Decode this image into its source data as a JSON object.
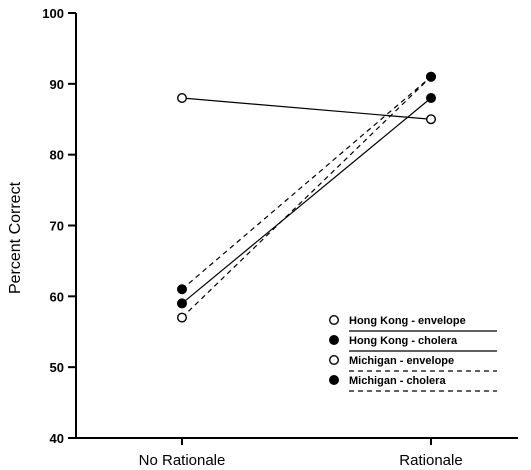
{
  "chart_data": {
    "type": "line",
    "ylabel": "Percent Correct",
    "xlabel": "",
    "categories": [
      "No Rationale",
      "Rationale"
    ],
    "ylim": [
      40,
      100
    ],
    "yticks": [
      40,
      50,
      60,
      70,
      80,
      90,
      100
    ],
    "grid": false,
    "legend_position": "bottom-right",
    "series": [
      {
        "name": "Hong Kong - envelope",
        "values": [
          88,
          85
        ],
        "marker": "open-circle",
        "line_style": "solid"
      },
      {
        "name": "Hong Kong - cholera",
        "values": [
          59,
          88
        ],
        "marker": "filled-circle",
        "line_style": "solid"
      },
      {
        "name": "Michigan - envelope",
        "values": [
          57,
          91
        ],
        "marker": "open-circle",
        "line_style": "dashed"
      },
      {
        "name": "Michigan - cholera",
        "values": [
          61,
          91
        ],
        "marker": "filled-circle",
        "line_style": "dashed"
      }
    ]
  }
}
